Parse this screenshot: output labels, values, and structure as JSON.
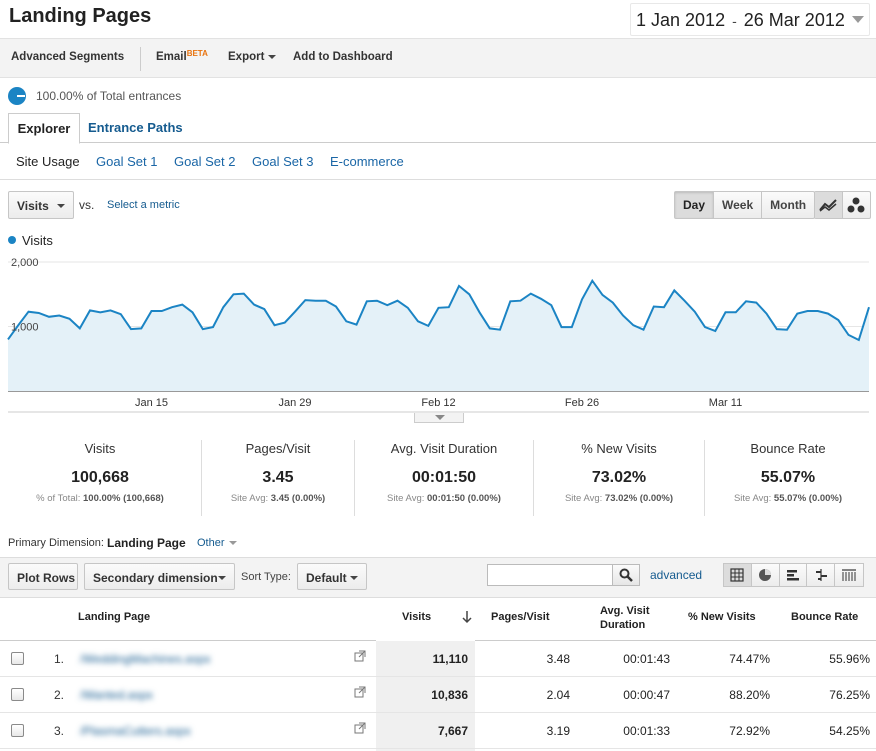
{
  "header": {
    "title": "Landing Pages",
    "date_start": "1 Jan 2012",
    "date_sep": "-",
    "date_end": "26 Mar 2012"
  },
  "toolbar": {
    "advanced_segments": "Advanced Segments",
    "email": "Email",
    "email_badge": "BETA",
    "export": "Export",
    "add_dashboard": "Add to Dashboard"
  },
  "segment": {
    "text": "100.00% of Total entrances"
  },
  "tabs": {
    "explorer": "Explorer",
    "entrance_paths": "Entrance Paths"
  },
  "subtabs": [
    "Site Usage",
    "Goal Set 1",
    "Goal Set 2",
    "Goal Set 3",
    "E-commerce"
  ],
  "chart_controls": {
    "metric": "Visits",
    "vs": "vs.",
    "select_metric": "Select a metric",
    "granularity": [
      "Day",
      "Week",
      "Month"
    ],
    "active_granularity": "Day",
    "icons": [
      "line-chart-icon",
      "motion-chart-icon"
    ]
  },
  "chart_data": {
    "type": "area",
    "series": [
      {
        "name": "Visits",
        "values": [
          800,
          1020,
          1230,
          1210,
          1150,
          1170,
          1120,
          970,
          1250,
          1220,
          1250,
          1190,
          960,
          970,
          1240,
          1240,
          1300,
          1340,
          1220,
          960,
          990,
          1300,
          1500,
          1510,
          1340,
          1270,
          1020,
          1060,
          1230,
          1410,
          1400,
          1400,
          1310,
          1080,
          1030,
          1390,
          1400,
          1330,
          1400,
          1290,
          1080,
          1010,
          1290,
          1300,
          1630,
          1500,
          1220,
          970,
          950,
          1390,
          1400,
          1510,
          1430,
          1330,
          990,
          990,
          1420,
          1710,
          1490,
          1370,
          1170,
          1020,
          950,
          1310,
          1300,
          1560,
          1400,
          1230,
          990,
          930,
          1220,
          1220,
          1390,
          1370,
          1200,
          960,
          950,
          1200,
          1240,
          1240,
          1200,
          1100,
          870,
          790,
          1300
        ]
      }
    ],
    "x_ticks": [
      "Jan 15",
      "Jan 29",
      "Feb 12",
      "Feb 26",
      "Mar 11"
    ],
    "y_ticks": [
      "2,000",
      "1,000"
    ],
    "ylim": [
      0,
      2000
    ],
    "colors": {
      "line": "#1b84c4",
      "fill": "#e4f1f8"
    }
  },
  "scorecard": [
    {
      "label": "Visits",
      "value": "100,668",
      "sub_prefix": "% of Total:",
      "sub_value": "100.00% (100,668)"
    },
    {
      "label": "Pages/Visit",
      "value": "3.45",
      "sub_prefix": "Site Avg:",
      "sub_value": "3.45 (0.00%)"
    },
    {
      "label": "Avg. Visit Duration",
      "value": "00:01:50",
      "sub_prefix": "Site Avg:",
      "sub_value": "00:01:50 (0.00%)"
    },
    {
      "label": "% New Visits",
      "value": "73.02%",
      "sub_prefix": "Site Avg:",
      "sub_value": "73.02% (0.00%)"
    },
    {
      "label": "Bounce Rate",
      "value": "55.07%",
      "sub_prefix": "Site Avg:",
      "sub_value": "55.07% (0.00%)"
    }
  ],
  "primary_dimension": {
    "label": "Primary Dimension:",
    "active": "Landing Page",
    "other": "Other"
  },
  "table_toolbar": {
    "plot_rows": "Plot Rows",
    "secondary_dimension": "Secondary dimension",
    "sort_type_label": "Sort Type:",
    "sort_type_value": "Default",
    "search_value": "",
    "advanced": "advanced",
    "view_icons": [
      "table-view-icon",
      "pie-view-icon",
      "bar-view-icon",
      "comparison-view-icon",
      "pivot-view-icon"
    ]
  },
  "table": {
    "headers": {
      "landing_page": "Landing Page",
      "visits": "Visits",
      "pages_visit": "Pages/Visit",
      "avg_duration": "Avg. Visit Duration",
      "new_visits": "% New Visits",
      "bounce_rate": "Bounce Rate"
    },
    "rows": [
      {
        "index": "1.",
        "page": "/WeddingMachines.aspx",
        "visits": "11,110",
        "pages_visit": "3.48",
        "avg_duration": "00:01:43",
        "new_visits": "74.47%",
        "bounce_rate": "55.96%"
      },
      {
        "index": "2.",
        "page": "/Wanted.aspx",
        "visits": "10,836",
        "pages_visit": "2.04",
        "avg_duration": "00:00:47",
        "new_visits": "88.20%",
        "bounce_rate": "76.25%"
      },
      {
        "index": "3.",
        "page": "/PlasmaCutters.aspx",
        "visits": "7,667",
        "pages_visit": "3.19",
        "avg_duration": "00:01:33",
        "new_visits": "72.92%",
        "bounce_rate": "54.25%"
      }
    ]
  }
}
